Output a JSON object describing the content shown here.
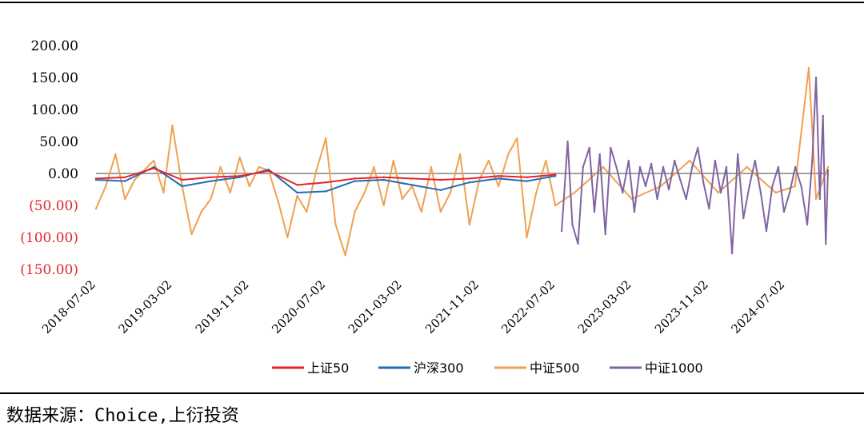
{
  "source_note": "数据来源：Choice,上衍投资",
  "colors": {
    "positive_tick": "#000000",
    "negative_tick": "#e0242b",
    "axis": "#808080"
  },
  "chart_data": {
    "type": "line",
    "title": "",
    "xlabel": "",
    "ylabel": "",
    "ylim": [
      -150,
      200
    ],
    "yticks": [
      {
        "value": 200,
        "label": "200.00"
      },
      {
        "value": 150,
        "label": "150.00"
      },
      {
        "value": 100,
        "label": "100.00"
      },
      {
        "value": 50,
        "label": "50.00"
      },
      {
        "value": 0,
        "label": "0.00"
      },
      {
        "value": -50,
        "label": "(50.00)"
      },
      {
        "value": -100,
        "label": "(100.00)"
      },
      {
        "value": -150,
        "label": "(150.00)"
      }
    ],
    "xrange": [
      "2018-07-02",
      "2024-11-15"
    ],
    "xticks": [
      "2018-07-02",
      "2019-03-02",
      "2019-11-02",
      "2020-07-02",
      "2021-03-02",
      "2021-11-02",
      "2022-07-02",
      "2023-03-02",
      "2023-11-02",
      "2024-07-02"
    ],
    "legend_position": "bottom",
    "series": [
      {
        "name": "上证50",
        "color": "#e8242b",
        "x": [
          "2018-07-02",
          "2018-10-02",
          "2019-01-02",
          "2019-04-02",
          "2019-07-02",
          "2019-10-02",
          "2020-01-02",
          "2020-04-02",
          "2020-07-02",
          "2020-10-02",
          "2021-01-02",
          "2021-04-02",
          "2021-07-02",
          "2021-10-02",
          "2022-01-02",
          "2022-04-02",
          "2022-07-02"
        ],
        "values": [
          -8,
          -6,
          8,
          -10,
          -6,
          -4,
          4,
          -18,
          -14,
          -8,
          -6,
          -8,
          -10,
          -8,
          -4,
          -6,
          -2
        ]
      },
      {
        "name": "沪深300",
        "color": "#1f6db5",
        "x": [
          "2018-07-02",
          "2018-10-02",
          "2019-01-02",
          "2019-04-02",
          "2019-07-02",
          "2019-10-02",
          "2020-01-02",
          "2020-04-02",
          "2020-07-02",
          "2020-10-02",
          "2021-01-02",
          "2021-04-02",
          "2021-07-02",
          "2021-10-02",
          "2022-01-02",
          "2022-04-02",
          "2022-07-02"
        ],
        "values": [
          -10,
          -12,
          10,
          -20,
          -12,
          -6,
          6,
          -30,
          -28,
          -12,
          -10,
          -18,
          -26,
          -14,
          -8,
          -12,
          -4
        ]
      },
      {
        "name": "中证500",
        "color": "#f0a050",
        "x": [
          "2018-07-02",
          "2018-08-02",
          "2018-09-02",
          "2018-10-02",
          "2018-11-02",
          "2018-12-02",
          "2019-01-02",
          "2019-02-02",
          "2019-03-02",
          "2019-04-02",
          "2019-05-02",
          "2019-06-02",
          "2019-07-02",
          "2019-08-02",
          "2019-09-02",
          "2019-10-02",
          "2019-11-02",
          "2019-12-02",
          "2020-01-02",
          "2020-02-02",
          "2020-03-02",
          "2020-04-02",
          "2020-05-02",
          "2020-06-02",
          "2020-07-02",
          "2020-08-02",
          "2020-09-02",
          "2020-10-02",
          "2020-11-02",
          "2020-12-02",
          "2021-01-02",
          "2021-02-02",
          "2021-03-02",
          "2021-04-02",
          "2021-05-02",
          "2021-06-02",
          "2021-07-02",
          "2021-08-02",
          "2021-09-02",
          "2021-10-02",
          "2021-11-02",
          "2021-12-02",
          "2022-01-02",
          "2022-02-02",
          "2022-03-02",
          "2022-04-02",
          "2022-05-02",
          "2022-06-02",
          "2022-07-02",
          "2022-09-01",
          "2022-12-01",
          "2023-03-02",
          "2023-06-02",
          "2023-09-02",
          "2023-12-02",
          "2024-03-02",
          "2024-06-02",
          "2024-08-02",
          "2024-09-15",
          "2024-10-08",
          "2024-11-15"
        ],
        "values": [
          -55,
          -20,
          30,
          -40,
          -10,
          5,
          20,
          -30,
          75,
          -20,
          -95,
          -60,
          -40,
          10,
          -30,
          25,
          -20,
          10,
          5,
          -45,
          -100,
          -35,
          -60,
          5,
          55,
          -80,
          -128,
          -60,
          -30,
          10,
          -50,
          20,
          -40,
          -20,
          -60,
          10,
          -60,
          -30,
          30,
          -80,
          -10,
          20,
          -20,
          30,
          55,
          -100,
          -30,
          20,
          -50,
          -30,
          10,
          -40,
          -20,
          20,
          -30,
          10,
          -30,
          -20,
          165,
          -40,
          10
        ]
      },
      {
        "name": "中证1000",
        "color": "#8064a2",
        "x": [
          "2022-07-22",
          "2022-08-10",
          "2022-08-25",
          "2022-09-12",
          "2022-09-28",
          "2022-10-18",
          "2022-11-03",
          "2022-11-20",
          "2022-12-08",
          "2022-12-25",
          "2023-01-12",
          "2023-02-01",
          "2023-02-20",
          "2023-03-10",
          "2023-03-28",
          "2023-04-15",
          "2023-05-03",
          "2023-05-22",
          "2023-06-10",
          "2023-06-28",
          "2023-07-16",
          "2023-08-03",
          "2023-08-22",
          "2023-09-10",
          "2023-09-28",
          "2023-10-16",
          "2023-11-03",
          "2023-11-22",
          "2023-12-10",
          "2023-12-28",
          "2024-01-15",
          "2024-02-02",
          "2024-02-20",
          "2024-03-10",
          "2024-03-28",
          "2024-04-15",
          "2024-05-03",
          "2024-05-22",
          "2024-06-10",
          "2024-06-28",
          "2024-07-16",
          "2024-08-03",
          "2024-08-22",
          "2024-09-10",
          "2024-09-26",
          "2024-10-08",
          "2024-10-20",
          "2024-10-30",
          "2024-11-08",
          "2024-11-15"
        ],
        "values": [
          -90,
          50,
          -80,
          -110,
          10,
          40,
          -60,
          30,
          -95,
          40,
          10,
          -30,
          20,
          -60,
          10,
          -20,
          15,
          -40,
          10,
          -25,
          20,
          -10,
          -40,
          10,
          40,
          -15,
          -55,
          20,
          -30,
          10,
          -125,
          30,
          -70,
          -20,
          20,
          -30,
          -90,
          -20,
          10,
          -60,
          -30,
          10,
          -20,
          -80,
          20,
          150,
          -40,
          90,
          -110,
          5
        ]
      }
    ]
  }
}
